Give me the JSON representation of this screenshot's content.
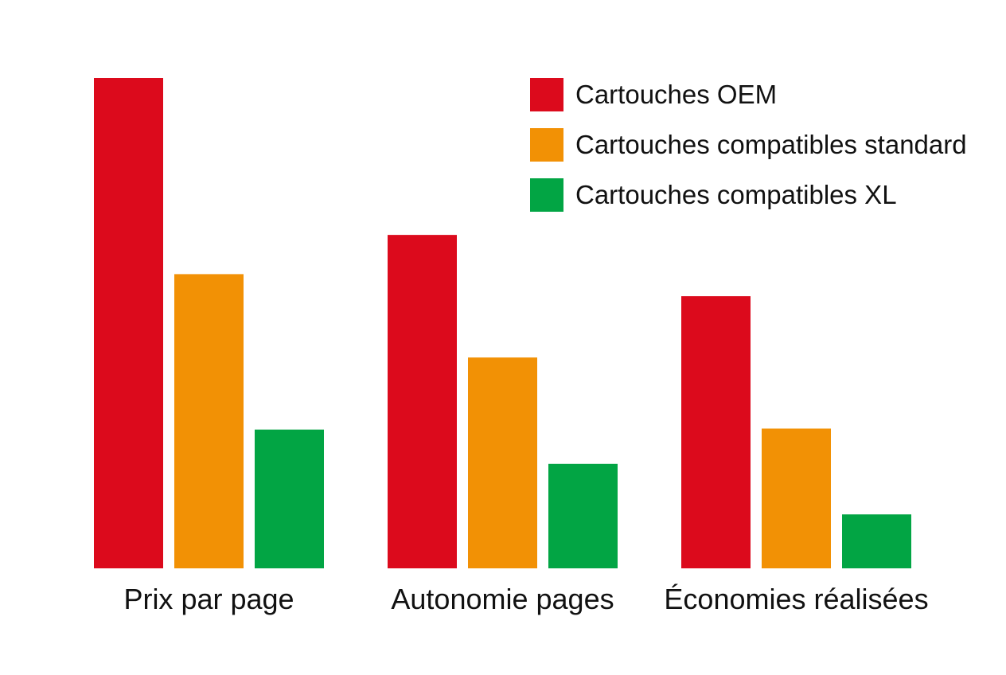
{
  "chart_data": {
    "type": "bar",
    "title": "",
    "xlabel": "",
    "ylabel": "",
    "ylim": [
      0,
      100
    ],
    "grid": false,
    "legend_position": "top-right",
    "categories": [
      "Prix par page",
      "Autonomie pages",
      "Économies réalisées"
    ],
    "series": [
      {
        "name": "Cartouches OEM",
        "color": "#dc0a1c",
        "values": [
          100,
          68,
          55.5
        ]
      },
      {
        "name": "Cartouches compatibles standard",
        "color": "#f29105",
        "values": [
          60,
          43,
          28.5
        ]
      },
      {
        "name": "Cartouches compatibles XL",
        "color": "#02a544",
        "values": [
          28.3,
          21.3,
          11
        ]
      }
    ]
  }
}
